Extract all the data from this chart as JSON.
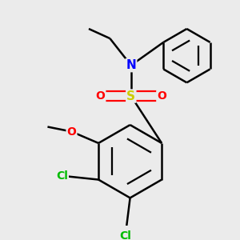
{
  "background_color": "#ebebeb",
  "bond_color": "#000000",
  "bond_width": 1.8,
  "atom_colors": {
    "N": "#0000ff",
    "S": "#cccc00",
    "O": "#ff0000",
    "Cl": "#00bb00",
    "C": "#000000"
  },
  "font_size": 11,
  "font_size_small": 10
}
